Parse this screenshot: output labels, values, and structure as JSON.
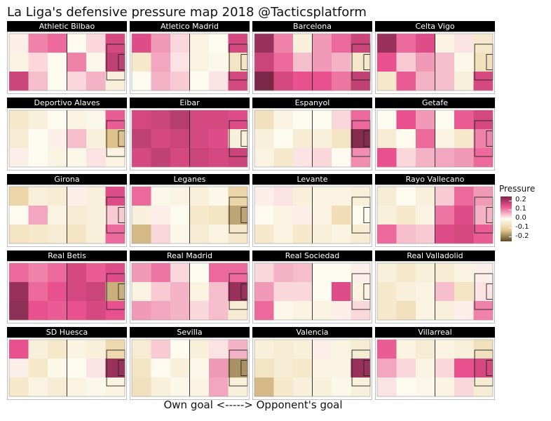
{
  "title": "La Liga's defensive pressure map 2018 @Tacticsplatform",
  "x_axis_label": "Own goal <-----> Opponent's goal",
  "colors": {
    "high": "#7a2748",
    "pink": "#e8518d",
    "zero": "#fdfbf0",
    "tan": "#e9cd98",
    "low": "#5e4a26",
    "strip_bg": "#000000",
    "strip_text": "#ffffff"
  },
  "chart_data": {
    "type": "heatmap",
    "title": "La Liga's defensive pressure map 2018 @Tacticsplatform",
    "xlabel": "Own goal <-----> Opponent's goal",
    "ylabel": "",
    "grid_rows": 3,
    "grid_cols": 6,
    "value_range": [
      -0.25,
      0.25
    ],
    "legend": {
      "title": "Pressure",
      "ticks": [
        0.2,
        0.1,
        0.0,
        -0.1,
        -0.2
      ],
      "tick_labels": [
        "0.2",
        "0.1",
        "0.0",
        "-0.1",
        "-0.2"
      ],
      "position": "right"
    },
    "teams": [
      {
        "name": "Athletic Bilbao",
        "values": [
          [
            0.01,
            0.1,
            0.12,
            0.0,
            0.03,
            0.16
          ],
          [
            -0.02,
            0.03,
            0.0,
            0.1,
            -0.01,
            0.18
          ],
          [
            0.17,
            0.05,
            0.0,
            0.03,
            0.06,
            -0.03
          ]
        ]
      },
      {
        "name": "Atletico Madrid",
        "values": [
          [
            0.15,
            0.08,
            0.03,
            -0.02,
            0.0,
            0.16
          ],
          [
            -0.05,
            0.07,
            0.02,
            -0.02,
            -0.01,
            -0.06
          ],
          [
            0.0,
            0.06,
            0.04,
            0.0,
            0.02,
            0.16
          ]
        ]
      },
      {
        "name": "Barcelona",
        "values": [
          [
            0.22,
            0.1,
            -0.03,
            0.08,
            0.12,
            0.17
          ],
          [
            0.17,
            0.12,
            0.05,
            0.08,
            0.06,
            -0.05
          ],
          [
            0.25,
            0.16,
            0.14,
            0.14,
            0.11,
            0.18
          ]
        ]
      },
      {
        "name": "Celta Vigo",
        "values": [
          [
            0.22,
            0.12,
            0.15,
            -0.02,
            0.02,
            -0.05
          ],
          [
            0.14,
            0.04,
            0.08,
            0.05,
            -0.01,
            -0.07
          ],
          [
            -0.05,
            0.13,
            0.06,
            0.05,
            -0.03,
            0.16
          ]
        ]
      },
      {
        "name": "Deportivo Alaves",
        "values": [
          [
            -0.05,
            -0.03,
            0.0,
            -0.02,
            -0.01,
            0.13
          ],
          [
            -0.04,
            0.0,
            0.01,
            0.05,
            -0.03,
            -0.13
          ],
          [
            0.01,
            0.0,
            -0.02,
            -0.01,
            0.02,
            -0.02
          ]
        ]
      },
      {
        "name": "Eibar",
        "values": [
          [
            0.16,
            0.17,
            0.19,
            0.16,
            0.16,
            0.15
          ],
          [
            0.18,
            0.16,
            0.17,
            0.16,
            0.15,
            -0.03
          ],
          [
            0.16,
            0.18,
            0.16,
            0.17,
            0.16,
            0.17
          ]
        ]
      },
      {
        "name": "Espanyol",
        "values": [
          [
            -0.07,
            -0.02,
            0.0,
            0.0,
            0.03,
            0.12
          ],
          [
            -0.03,
            0.0,
            -0.04,
            -0.03,
            -0.06,
            0.24
          ],
          [
            -0.02,
            -0.05,
            0.02,
            0.03,
            0.0,
            0.09
          ]
        ]
      },
      {
        "name": "Getafe",
        "values": [
          [
            0.0,
            0.14,
            0.08,
            0.0,
            0.13,
            0.16
          ],
          [
            -0.04,
            0.0,
            0.12,
            -0.02,
            -0.05,
            0.1
          ],
          [
            0.14,
            0.03,
            0.06,
            0.07,
            0.08,
            0.12
          ]
        ]
      },
      {
        "name": "Girona",
        "values": [
          [
            -0.1,
            -0.03,
            -0.04,
            0.01,
            -0.03,
            0.15
          ],
          [
            0.0,
            0.07,
            -0.02,
            -0.04,
            -0.03,
            0.04
          ],
          [
            -0.06,
            -0.05,
            -0.04,
            -0.06,
            -0.03,
            0.12
          ]
        ]
      },
      {
        "name": "Leganes",
        "values": [
          [
            0.12,
            -0.01,
            -0.02,
            -0.03,
            -0.01,
            -0.1
          ],
          [
            -0.03,
            0.01,
            0.0,
            -0.05,
            -0.06,
            -0.16
          ],
          [
            -0.14,
            0.03,
            -0.01,
            -0.04,
            -0.02,
            -0.05
          ]
        ]
      },
      {
        "name": "Levante",
        "values": [
          [
            0.01,
            0.02,
            -0.03,
            -0.02,
            -0.02,
            -0.03
          ],
          [
            0.0,
            -0.02,
            0.01,
            -0.02,
            -0.08,
            0.0
          ],
          [
            -0.05,
            -0.02,
            -0.05,
            -0.03,
            -0.02,
            -0.04
          ]
        ]
      },
      {
        "name": "Rayo Vallecano",
        "values": [
          [
            -0.04,
            0.0,
            -0.03,
            0.04,
            0.12,
            0.08
          ],
          [
            -0.03,
            -0.05,
            -0.02,
            0.11,
            0.15,
            0.06
          ],
          [
            0.12,
            0.05,
            0.04,
            0.15,
            0.16,
            0.13
          ]
        ]
      },
      {
        "name": "Real Betis",
        "values": [
          [
            0.12,
            0.1,
            0.12,
            0.16,
            0.13,
            0.15
          ],
          [
            0.22,
            0.12,
            0.14,
            0.16,
            0.17,
            -0.15
          ],
          [
            0.23,
            0.14,
            0.13,
            0.14,
            0.16,
            0.14
          ]
        ]
      },
      {
        "name": "Real Madrid",
        "values": [
          [
            0.08,
            0.11,
            0.03,
            0.0,
            0.12,
            0.12
          ],
          [
            -0.02,
            0.04,
            0.06,
            -0.02,
            0.05,
            0.22
          ],
          [
            0.08,
            0.07,
            0.06,
            0.03,
            0.05,
            -0.04
          ]
        ]
      },
      {
        "name": "Real Sociedad",
        "values": [
          [
            0.03,
            0.06,
            0.05,
            0.0,
            0.0,
            0.01
          ],
          [
            0.08,
            0.03,
            0.03,
            0.0,
            0.15,
            -0.02
          ],
          [
            0.12,
            -0.01,
            -0.02,
            -0.02,
            0.01,
            0.03
          ]
        ]
      },
      {
        "name": "Real Valladolid",
        "values": [
          [
            -0.03,
            -0.05,
            -0.03,
            -0.04,
            -0.02,
            0.01
          ],
          [
            -0.05,
            -0.03,
            -0.02,
            0.05,
            -0.06,
            0.02
          ],
          [
            -0.05,
            -0.07,
            -0.02,
            -0.03,
            0.01,
            0.1
          ]
        ]
      },
      {
        "name": "SD Huesca",
        "values": [
          [
            0.14,
            -0.03,
            -0.05,
            -0.02,
            -0.03,
            -0.09
          ],
          [
            0.01,
            -0.05,
            -0.01,
            0.0,
            0.02,
            0.22
          ],
          [
            -0.05,
            -0.02,
            -0.04,
            -0.02,
            -0.01,
            -0.02
          ]
        ]
      },
      {
        "name": "Sevilla",
        "values": [
          [
            -0.04,
            0.04,
            0.0,
            -0.03,
            0.02,
            0.06
          ],
          [
            -0.06,
            0.0,
            -0.03,
            -0.01,
            0.08,
            -0.18
          ],
          [
            -0.07,
            -0.03,
            -0.01,
            -0.02,
            0.07,
            -0.03
          ]
        ]
      },
      {
        "name": "Valencia",
        "values": [
          [
            -0.03,
            -0.04,
            -0.03,
            0.01,
            -0.02,
            -0.04
          ],
          [
            -0.06,
            -0.04,
            -0.05,
            -0.02,
            -0.02,
            0.22
          ],
          [
            -0.14,
            -0.05,
            -0.03,
            -0.03,
            -0.01,
            -0.03
          ]
        ]
      },
      {
        "name": "Villarreal",
        "values": [
          [
            0.13,
            -0.02,
            -0.04,
            -0.02,
            -0.03,
            -0.07
          ],
          [
            0.07,
            0.03,
            -0.02,
            0.03,
            0.14,
            0.16
          ],
          [
            0.02,
            0.0,
            -0.01,
            -0.02,
            0.03,
            -0.04
          ]
        ]
      }
    ]
  }
}
